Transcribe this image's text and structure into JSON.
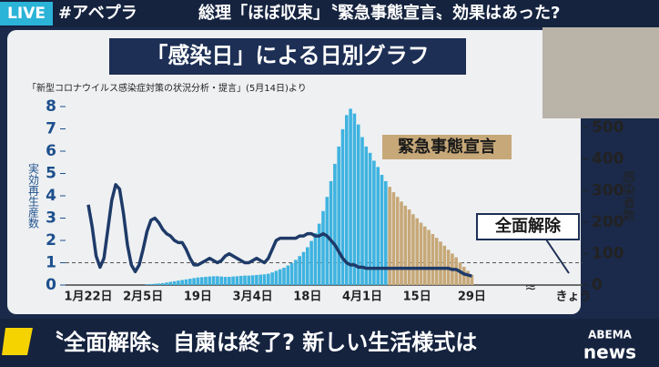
{
  "broadcast": {
    "live": "LIVE",
    "hashtag": "#アベプラ",
    "headline": "総理「ほぼ収束」〝緊急事態宣言〟効果はあった?",
    "caption": "〝全面解除〟自粛は終了? 新しい生活様式は",
    "logo_top": "ABEMA",
    "logo_bottom": "news"
  },
  "chart_data": {
    "type": "bar_line",
    "title": "「感染日」による日別グラフ",
    "subtitle": "「新型コロナウイルス感染症対策の状況分析・提言」(5月14日)より",
    "ylabel": "実効再生産数",
    "y2label": "感染者数",
    "today_label": "きょう",
    "annotations": [
      "緊急事態宣言",
      "全面解除"
    ],
    "categories": [
      "1月22日",
      null,
      null,
      null,
      null,
      null,
      null,
      null,
      null,
      null,
      null,
      null,
      null,
      null,
      "2月5日",
      null,
      null,
      null,
      null,
      null,
      null,
      null,
      null,
      null,
      null,
      null,
      null,
      null,
      "19日",
      null,
      null,
      null,
      null,
      null,
      null,
      null,
      null,
      null,
      null,
      null,
      null,
      null,
      "3月4日",
      null,
      null,
      null,
      null,
      null,
      null,
      null,
      null,
      null,
      null,
      null,
      null,
      null,
      "18日",
      null,
      null,
      null,
      null,
      null,
      null,
      null,
      null,
      null,
      null,
      null,
      null,
      null,
      "4月1日",
      null,
      null,
      null,
      null,
      null,
      null,
      null,
      null,
      null,
      null,
      null,
      null,
      null,
      "15日",
      null,
      null,
      null,
      null,
      null,
      null,
      null,
      null,
      null,
      null,
      null,
      null,
      null,
      "29日"
    ],
    "series": [
      {
        "color": "#3fb3e0",
        "axis": "y2",
        "values": [
          null,
          null,
          null,
          null,
          null,
          null,
          null,
          null,
          null,
          null,
          null,
          null,
          null,
          null,
          null,
          2,
          3,
          4,
          5,
          6,
          8,
          10,
          12,
          14,
          16,
          18,
          20,
          22,
          24,
          25,
          26,
          27,
          28,
          28,
          27,
          26,
          26,
          27,
          28,
          29,
          30,
          30,
          31,
          32,
          33,
          34,
          36,
          40,
          45,
          50,
          55,
          62,
          70,
          80,
          92,
          105,
          120,
          140,
          165,
          195,
          235,
          280,
          330,
          385,
          440,
          495,
          540,
          560,
          545,
          510,
          470,
          440,
          420,
          395,
          375,
          350,
          330,
          null,
          null,
          null,
          null,
          null,
          null,
          null,
          null,
          null,
          null,
          null,
          null,
          null,
          null,
          null,
          null,
          null,
          null,
          null,
          null,
          null,
          null
        ]
      },
      {
        "color": "#c7a878",
        "axis": "y2",
        "values": [
          null,
          null,
          null,
          null,
          null,
          null,
          null,
          null,
          null,
          null,
          null,
          null,
          null,
          null,
          null,
          null,
          null,
          null,
          null,
          null,
          null,
          null,
          null,
          null,
          null,
          null,
          null,
          null,
          null,
          null,
          null,
          null,
          null,
          null,
          null,
          null,
          null,
          null,
          null,
          null,
          null,
          null,
          null,
          null,
          null,
          null,
          null,
          null,
          null,
          null,
          null,
          null,
          null,
          null,
          null,
          null,
          null,
          null,
          null,
          null,
          null,
          null,
          null,
          null,
          null,
          null,
          null,
          null,
          null,
          null,
          null,
          null,
          null,
          null,
          null,
          null,
          null,
          312,
          295,
          280,
          265,
          252,
          240,
          225,
          212,
          198,
          186,
          175,
          162,
          150,
          138,
          125,
          112,
          100,
          88,
          72,
          58,
          45,
          32
        ]
      },
      {
        "color": "#1e3a68",
        "axis": "y",
        "values": [
          3.6,
          2.6,
          1.3,
          0.8,
          1.2,
          2.5,
          3.8,
          4.5,
          4.3,
          3.2,
          1.8,
          0.9,
          0.6,
          0.9,
          1.6,
          2.4,
          2.9,
          3.0,
          2.8,
          2.5,
          2.3,
          2.2,
          2.0,
          1.9,
          1.9,
          1.6,
          1.2,
          0.9,
          0.9,
          1.0,
          1.1,
          1.2,
          1.1,
          1.0,
          1.1,
          1.3,
          1.4,
          1.3,
          1.2,
          1.1,
          1.0,
          1.0,
          1.1,
          1.2,
          1.1,
          1.0,
          1.2,
          1.6,
          2.0,
          2.1,
          2.1,
          2.1,
          2.1,
          2.1,
          2.2,
          2.2,
          2.3,
          2.3,
          2.2,
          2.2,
          2.3,
          2.2,
          2.0,
          1.8,
          1.5,
          1.2,
          1.0,
          0.9,
          0.9,
          0.8,
          0.8,
          0.75,
          0.75,
          0.75,
          0.75,
          0.75,
          0.75,
          0.75,
          0.75,
          0.75,
          0.75,
          0.75,
          0.75,
          0.75,
          0.75,
          0.75,
          0.75,
          0.75,
          0.75,
          0.75,
          0.75,
          0.75,
          0.75,
          0.7,
          0.7,
          0.6,
          0.5,
          0.45,
          0.4
        ]
      }
    ],
    "ylim": [
      0,
      8
    ],
    "yticks": [
      0,
      1,
      2,
      3,
      4,
      5,
      6,
      7,
      8
    ],
    "y2lim": [
      0,
      567
    ],
    "y2ticks": [
      0,
      100,
      200,
      300,
      400,
      500
    ],
    "hline": 1
  }
}
